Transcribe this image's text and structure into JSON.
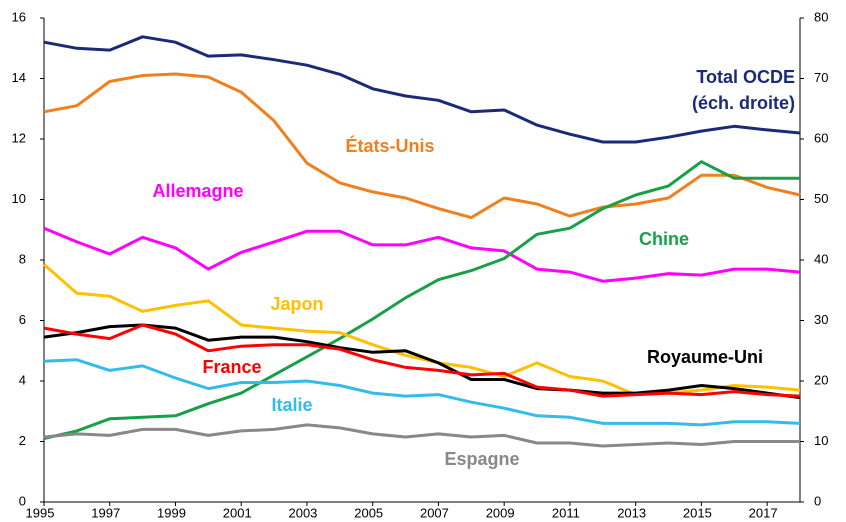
{
  "chart_data": {
    "type": "line",
    "x": [
      1995,
      1996,
      1997,
      1998,
      1999,
      2000,
      2001,
      2002,
      2003,
      2004,
      2005,
      2006,
      2007,
      2008,
      2009,
      2010,
      2011,
      2012,
      2013,
      2014,
      2015,
      2016,
      2017,
      2018
    ],
    "xlim": [
      1995,
      2018
    ],
    "xticks": [
      1995,
      1997,
      1999,
      2001,
      2003,
      2005,
      2007,
      2009,
      2011,
      2013,
      2015,
      2017
    ],
    "ylim": [
      0,
      16
    ],
    "yticks": [
      0,
      2,
      4,
      6,
      8,
      10,
      12,
      14,
      16
    ],
    "y2lim": [
      0,
      80
    ],
    "y2ticks": [
      0,
      10,
      20,
      30,
      40,
      50,
      60,
      70,
      80
    ],
    "series": [
      {
        "name": "Total OCDE",
        "color": "#1a2a78",
        "axis": "y2",
        "values": [
          76.0,
          75.0,
          74.7,
          76.9,
          76.0,
          73.7,
          73.9,
          73.1,
          72.2,
          70.7,
          68.3,
          67.1,
          66.4,
          64.5,
          64.8,
          62.3,
          60.8,
          59.5,
          59.5,
          60.3,
          61.3,
          62.1,
          61.5,
          61.0
        ]
      },
      {
        "name": "États-Unis",
        "color": "#f07f1e",
        "values": [
          12.9,
          13.1,
          13.9,
          14.1,
          14.15,
          14.05,
          13.55,
          12.6,
          11.2,
          10.55,
          10.25,
          10.05,
          9.7,
          9.4,
          10.05,
          9.85,
          9.45,
          9.75,
          9.85,
          10.05,
          10.8,
          10.8,
          10.4,
          10.15
        ]
      },
      {
        "name": "Allemagne",
        "color": "#ff00ff",
        "values": [
          9.05,
          8.6,
          8.2,
          8.75,
          8.4,
          7.7,
          8.25,
          8.6,
          8.95,
          8.95,
          8.5,
          8.5,
          8.75,
          8.4,
          8.3,
          7.7,
          7.6,
          7.3,
          7.4,
          7.55,
          7.5,
          7.7,
          7.7,
          7.6
        ]
      },
      {
        "name": "Chine",
        "color": "#17a048",
        "values": [
          2.1,
          2.35,
          2.75,
          2.8,
          2.85,
          3.25,
          3.6,
          4.2,
          4.8,
          5.4,
          6.05,
          6.75,
          7.35,
          7.65,
          8.05,
          8.85,
          9.05,
          9.7,
          10.15,
          10.45,
          11.25,
          10.7,
          10.7,
          10.7
        ]
      },
      {
        "name": "Japon",
        "color": "#ffc000",
        "values": [
          7.85,
          6.9,
          6.8,
          6.3,
          6.5,
          6.65,
          5.85,
          5.75,
          5.65,
          5.6,
          5.2,
          4.85,
          4.6,
          4.45,
          4.15,
          4.6,
          4.15,
          4.0,
          3.55,
          3.6,
          3.7,
          3.85,
          3.8,
          3.7
        ]
      },
      {
        "name": "Royaume-Uni",
        "color": "#000000",
        "values": [
          5.45,
          5.6,
          5.8,
          5.85,
          5.75,
          5.35,
          5.45,
          5.45,
          5.3,
          5.1,
          4.95,
          5.0,
          4.6,
          4.05,
          4.05,
          3.75,
          3.7,
          3.6,
          3.6,
          3.7,
          3.85,
          3.75,
          3.6,
          3.45
        ]
      },
      {
        "name": "France",
        "color": "#ff0000",
        "values": [
          5.75,
          5.55,
          5.4,
          5.85,
          5.55,
          5.0,
          5.15,
          5.2,
          5.2,
          5.05,
          4.7,
          4.45,
          4.35,
          4.2,
          4.25,
          3.8,
          3.7,
          3.5,
          3.55,
          3.6,
          3.55,
          3.65,
          3.55,
          3.5
        ]
      },
      {
        "name": "Italie",
        "color": "#33bbee",
        "values": [
          4.65,
          4.7,
          4.35,
          4.5,
          4.1,
          3.75,
          3.95,
          3.95,
          4.0,
          3.85,
          3.6,
          3.5,
          3.55,
          3.3,
          3.1,
          2.85,
          2.8,
          2.6,
          2.6,
          2.6,
          2.55,
          2.65,
          2.65,
          2.6
        ]
      },
      {
        "name": "Espagne",
        "color": "#888888",
        "values": [
          2.15,
          2.25,
          2.2,
          2.4,
          2.4,
          2.2,
          2.35,
          2.4,
          2.55,
          2.45,
          2.25,
          2.15,
          2.25,
          2.15,
          2.2,
          1.95,
          1.95,
          1.85,
          1.9,
          1.95,
          1.9,
          2.0,
          2.0,
          2.0
        ]
      }
    ],
    "annotations": [
      "(éch. droite)"
    ]
  }
}
